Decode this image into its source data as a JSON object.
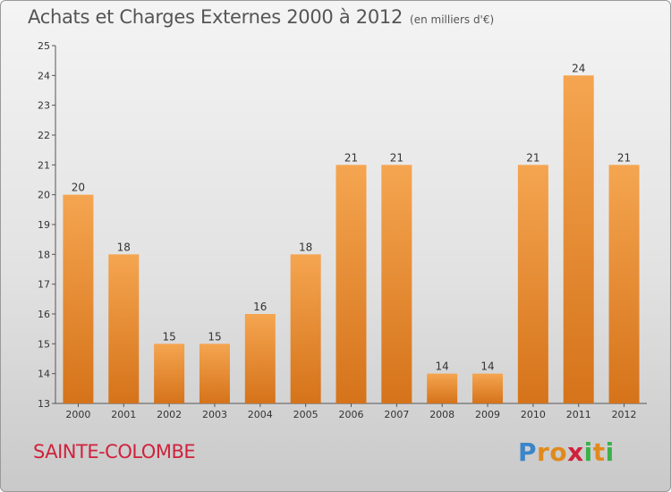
{
  "header": {
    "title": "Achats et Charges Externes 2000 à 2012",
    "subtitle": "(en milliers d'€)"
  },
  "footer": {
    "commune": "SAINTE-COLOMBE",
    "logo_letters": [
      "P",
      "r",
      "o",
      "x",
      "i",
      "t",
      "i"
    ],
    "logo_colors": [
      "#3b86c8",
      "#e08a1e",
      "#e08a1e",
      "#d0223c",
      "#3bb14a",
      "#e08a1e",
      "#3bb14a"
    ]
  },
  "colors": {
    "bar_top": "#f5a550",
    "bar_bottom": "#d5731a",
    "commune_text": "#d0223c"
  },
  "chart_data": {
    "type": "bar",
    "title": "Achats et Charges Externes 2000 à 2012",
    "subtitle": "(en milliers d'€)",
    "categories": [
      "2000",
      "2001",
      "2002",
      "2003",
      "2004",
      "2005",
      "2006",
      "2007",
      "2008",
      "2009",
      "2010",
      "2011",
      "2012"
    ],
    "values": [
      20,
      18,
      15,
      15,
      16,
      18,
      21,
      21,
      14,
      14,
      21,
      24,
      21
    ],
    "data_labels": [
      "20",
      "18",
      "15",
      "15",
      "16",
      "18",
      "21",
      "21",
      "14",
      "14",
      "21",
      "24",
      "21"
    ],
    "ylim": [
      13,
      25
    ],
    "y_ticks": [
      13,
      14,
      15,
      16,
      17,
      18,
      19,
      20,
      21,
      22,
      23,
      24,
      25
    ],
    "grid": false,
    "xlabel": "",
    "ylabel": ""
  }
}
